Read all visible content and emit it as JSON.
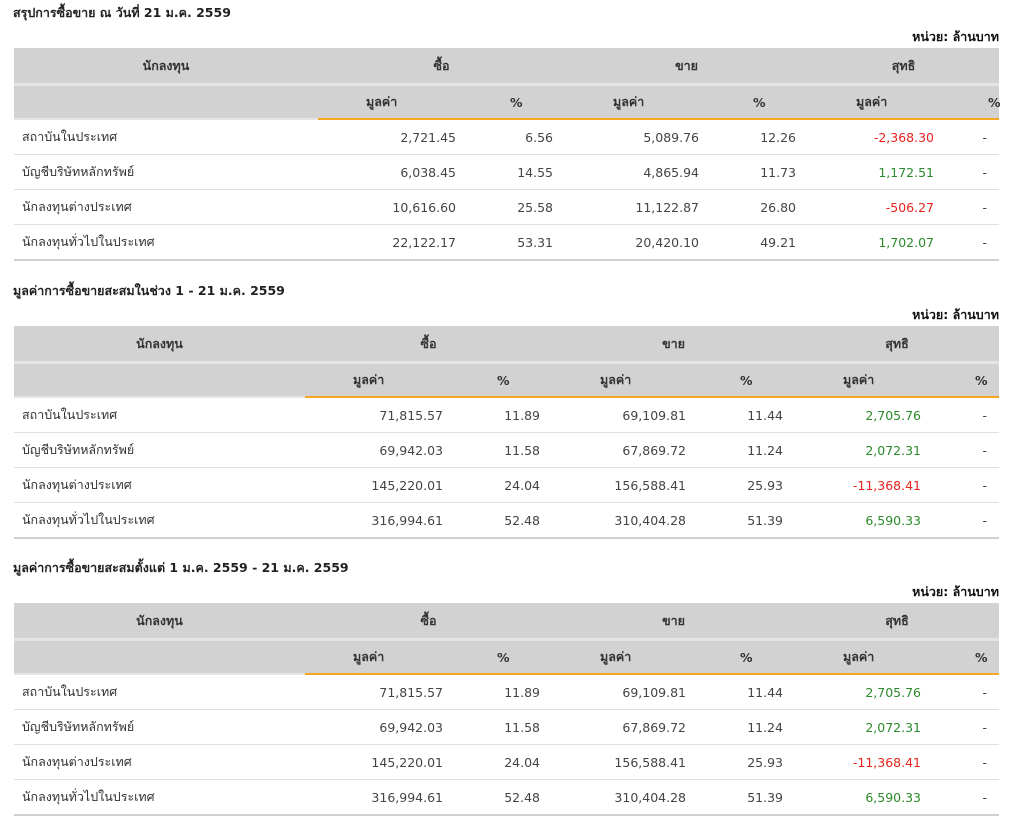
{
  "unit_label": "หน่วย: ล้านบาท",
  "headers": {
    "investor": "นักลงทุน",
    "buy": "ซื้อ",
    "sell": "ขาย",
    "net": "สุทธิ",
    "value": "มูลค่า",
    "pct": "%"
  },
  "colors": {
    "positive": "#2c8a2c",
    "negative": "#e8231d",
    "accent": "#f5a623"
  },
  "sections": [
    {
      "title": "สรุปการซื้อขาย ณ วันที่ 21 ม.ค. 2559",
      "rows": [
        [
          "สถาบันในประเทศ",
          "2,721.45",
          "6.56",
          "5,089.76",
          "12.26",
          "-2,368.30",
          "-"
        ],
        [
          "บัญชีบริษัทหลักทรัพย์",
          "6,038.45",
          "14.55",
          "4,865.94",
          "11.73",
          "1,172.51",
          "-"
        ],
        [
          "นักลงทุนต่างประเทศ",
          "10,616.60",
          "25.58",
          "11,122.87",
          "26.80",
          "-506.27",
          "-"
        ],
        [
          "นักลงทุนทั่วไปในประเทศ",
          "22,122.17",
          "53.31",
          "20,420.10",
          "49.21",
          "1,702.07",
          "-"
        ]
      ]
    },
    {
      "title": "มูลค่าการซื้อขายสะสมในช่วง 1 - 21 ม.ค. 2559",
      "rows": [
        [
          "สถาบันในประเทศ",
          "71,815.57",
          "11.89",
          "69,109.81",
          "11.44",
          "2,705.76",
          "-"
        ],
        [
          "บัญชีบริษัทหลักทรัพย์",
          "69,942.03",
          "11.58",
          "67,869.72",
          "11.24",
          "2,072.31",
          "-"
        ],
        [
          "นักลงทุนต่างประเทศ",
          "145,220.01",
          "24.04",
          "156,588.41",
          "25.93",
          "-11,368.41",
          "-"
        ],
        [
          "นักลงทุนทั่วไปในประเทศ",
          "316,994.61",
          "52.48",
          "310,404.28",
          "51.39",
          "6,590.33",
          "-"
        ]
      ]
    },
    {
      "title": "มูลค่าการซื้อขายสะสมตั้งแต่ 1 ม.ค. 2559 - 21 ม.ค. 2559",
      "rows": [
        [
          "สถาบันในประเทศ",
          "71,815.57",
          "11.89",
          "69,109.81",
          "11.44",
          "2,705.76",
          "-"
        ],
        [
          "บัญชีบริษัทหลักทรัพย์",
          "69,942.03",
          "11.58",
          "67,869.72",
          "11.24",
          "2,072.31",
          "-"
        ],
        [
          "นักลงทุนต่างประเทศ",
          "145,220.01",
          "24.04",
          "156,588.41",
          "25.93",
          "-11,368.41",
          "-"
        ],
        [
          "นักลงทุนทั่วไปในประเทศ",
          "316,994.61",
          "52.48",
          "310,404.28",
          "51.39",
          "6,590.33",
          "-"
        ]
      ]
    }
  ]
}
